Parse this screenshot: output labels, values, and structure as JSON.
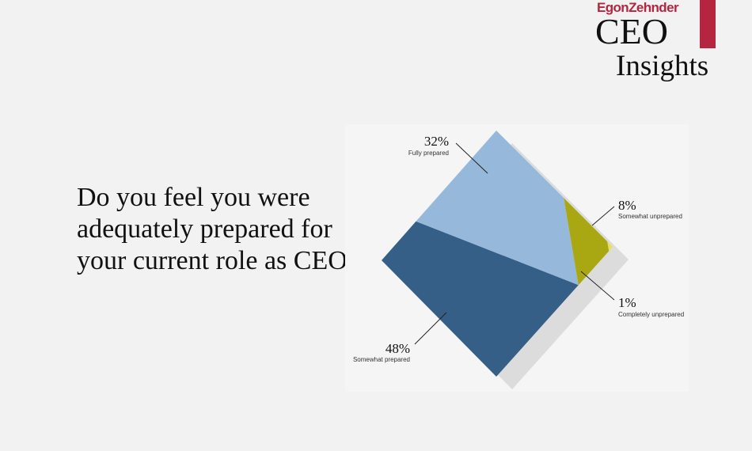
{
  "brand": {
    "company": "EgonZehnder",
    "title": "CEO",
    "subtitle": "Insights",
    "accent_color": "#b5253f"
  },
  "question": "Do you feel you were adequately prepared for your current role as CEO?",
  "chart_data": {
    "type": "area",
    "categories": [
      "Fully prepared",
      "Somewhat unprepared",
      "Completely unprepared",
      "Somewhat prepared"
    ],
    "values": [
      32,
      8,
      1,
      48
    ],
    "labels": [
      "32%",
      "8%",
      "1%",
      "48%"
    ],
    "colors": [
      "#96b8db",
      "#a9a712",
      "#e6e25b",
      "#355f86"
    ],
    "shadow_color": "#dcdcdc"
  }
}
